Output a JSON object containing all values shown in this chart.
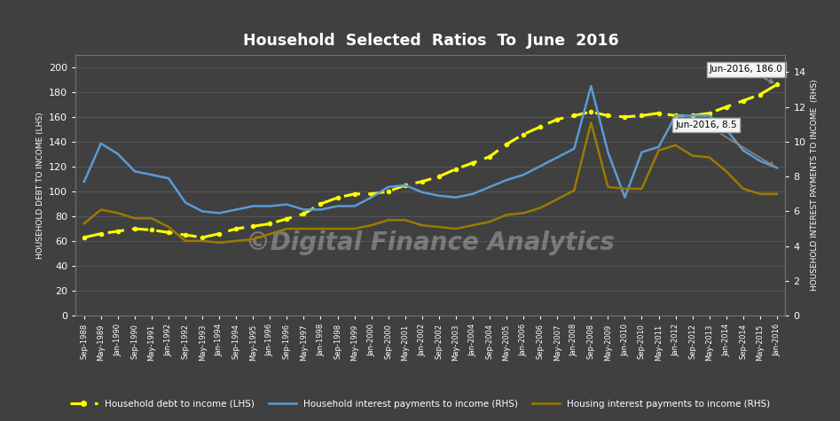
{
  "title": "Household  Selected  Ratios  To  June  2016",
  "watermark": "©Digital Finance Analytics",
  "background_color": "#404040",
  "text_color": "#ffffff",
  "grid_color": "#606060",
  "lhs_ylim": [
    0,
    210
  ],
  "lhs_yticks": [
    0,
    20,
    40,
    60,
    80,
    100,
    120,
    140,
    160,
    180,
    200
  ],
  "rhs_ylim": [
    0,
    15.0
  ],
  "rhs_yticks": [
    0,
    2,
    4,
    6,
    8,
    10,
    12,
    14
  ],
  "annotation1_text": "Jun-2016, 186.0",
  "annotation2_text": "Jun-2016, 8.5",
  "legend_items": [
    {
      "label": "Household debt to income (LHS)",
      "color": "#ffff00",
      "linestyle": "dashed"
    },
    {
      "label": "Household interest payments to income (RHS)",
      "color": "#5b9bd5",
      "linestyle": "solid"
    },
    {
      "label": "Housing interest payments to income (RHS)",
      "color": "#9a7b00",
      "linestyle": "solid"
    }
  ],
  "x_labels": [
    "Sep-1988",
    "May-1989",
    "Jan-1990",
    "Sep-1990",
    "May-1991",
    "Jan-1992",
    "Sep-1992",
    "May-1993",
    "Jan-1994",
    "Sep-1994",
    "May-1995",
    "Jan-1996",
    "Sep-1996",
    "May-1997",
    "Jan-1998",
    "Sep-1998",
    "May-1999",
    "Jan-2000",
    "Sep-2000",
    "May-2001",
    "Jan-2002",
    "Sep-2002",
    "May-2003",
    "Jan-2004",
    "Sep-2004",
    "May-2005",
    "Jan-2006",
    "Sep-2006",
    "May-2007",
    "Jan-2008",
    "Sep-2008",
    "May-2009",
    "Jan-2010",
    "Sep-2010",
    "May-2011",
    "Jan-2012",
    "Sep-2012",
    "May-2013",
    "Jan-2014",
    "Sep-2014",
    "May-2015",
    "Jan-2016"
  ],
  "lhs_data": [
    63,
    66,
    68,
    70,
    69,
    67,
    65,
    63,
    66,
    70,
    72,
    74,
    78,
    82,
    90,
    95,
    98,
    98,
    100,
    105,
    108,
    112,
    118,
    123,
    128,
    138,
    146,
    152,
    158,
    161,
    164,
    161,
    160,
    161,
    163,
    161,
    161,
    163,
    168,
    173,
    178,
    186
  ],
  "rhs_hh_data": [
    7.7,
    9.9,
    9.3,
    8.3,
    8.1,
    7.9,
    6.5,
    6.0,
    5.9,
    6.1,
    6.3,
    6.3,
    6.4,
    6.1,
    6.1,
    6.3,
    6.3,
    6.8,
    7.4,
    7.5,
    7.1,
    6.9,
    6.8,
    7.0,
    7.4,
    7.8,
    8.1,
    8.6,
    9.1,
    9.6,
    13.2,
    9.4,
    6.8,
    9.4,
    9.7,
    11.5,
    11.5,
    11.5,
    10.7,
    9.5,
    8.9,
    8.5
  ],
  "rhs_housing_data": [
    5.3,
    6.1,
    5.9,
    5.6,
    5.6,
    5.1,
    4.3,
    4.3,
    4.2,
    4.3,
    4.4,
    4.7,
    5.0,
    5.0,
    5.0,
    5.0,
    5.0,
    5.2,
    5.5,
    5.5,
    5.2,
    5.1,
    5.0,
    5.2,
    5.4,
    5.8,
    5.9,
    6.2,
    6.7,
    7.2,
    11.1,
    7.4,
    7.3,
    7.3,
    9.5,
    9.8,
    9.2,
    9.1,
    8.3,
    7.3,
    7.0,
    7.0
  ]
}
